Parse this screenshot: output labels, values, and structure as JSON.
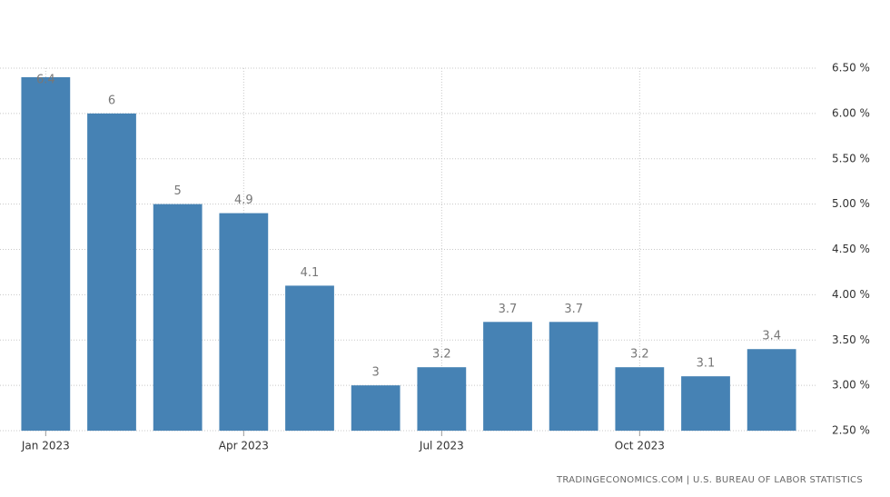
{
  "chart_data": {
    "type": "bar",
    "categories": [
      "Jan 2023",
      null,
      null,
      "Apr 2023",
      null,
      null,
      "Jul 2023",
      null,
      null,
      "Oct 2023",
      null,
      null
    ],
    "values": [
      6.4,
      6,
      5,
      4.9,
      4.1,
      3,
      3.2,
      3.7,
      3.7,
      3.2,
      3.1,
      3.4
    ],
    "color": "#4682b4",
    "ylim": [
      2.5,
      6.5
    ],
    "yticks": [
      {
        "value": 2.5,
        "label": "2.50 %"
      },
      {
        "value": 3,
        "label": "3.00 %"
      },
      {
        "value": 3.5,
        "label": "3.50 %"
      },
      {
        "value": 4,
        "label": "4.00 %"
      },
      {
        "value": 4.5,
        "label": "4.50 %"
      },
      {
        "value": 5,
        "label": "5.00 %"
      },
      {
        "value": 5.5,
        "label": "5.50 %"
      },
      {
        "value": 6,
        "label": "6.00 %"
      },
      {
        "value": 6.5,
        "label": "6.50 %"
      }
    ],
    "grid": true,
    "source": "TRADINGECONOMICS.COM  |  U.S. BUREAU OF LABOR STATISTICS"
  }
}
